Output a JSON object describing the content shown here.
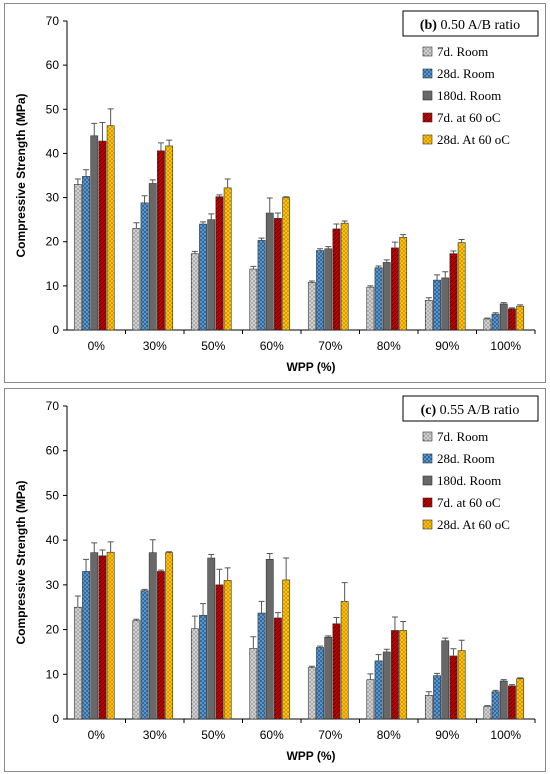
{
  "chart_data": [
    {
      "type": "bar",
      "title": "(b) 0.50 A/B ratio",
      "title_bold": "(b)",
      "title_rest": " 0.50 A/B ratio",
      "xlabel": "WPP (%)",
      "ylabel": "Compressive Strength (MPa)",
      "ylim": [
        0,
        70
      ],
      "yticks": [
        "0",
        "10",
        "20",
        "30",
        "40",
        "50",
        "60",
        "70"
      ],
      "legend_position": "right",
      "categories": [
        "0%",
        "30%",
        "50%",
        "60%",
        "70%",
        "80%",
        "90%",
        "100%"
      ],
      "series": [
        {
          "name": "7d. Room",
          "color": "#d0d0d0",
          "values": [
            33,
            23,
            17.3,
            13.8,
            10.8,
            9.7,
            6.7,
            2.5
          ],
          "errors": [
            1.2,
            1.3,
            0.5,
            0.6,
            0.3,
            0.3,
            0.6,
            0.2
          ]
        },
        {
          "name": "28d. Room",
          "color": "#5b9bd5",
          "values": [
            34.8,
            28.8,
            24,
            20.3,
            18,
            14.1,
            11.3,
            3.6
          ],
          "errors": [
            1.5,
            1.6,
            0.5,
            0.5,
            0.4,
            0.4,
            1.2,
            0.3
          ]
        },
        {
          "name": "180d. Room",
          "color": "#7f7f7f",
          "values": [
            44,
            33.2,
            25,
            26.5,
            18.4,
            15.3,
            11.8,
            5.9
          ],
          "errors": [
            2.8,
            0.8,
            1.3,
            3.4,
            0.5,
            0.6,
            1.4,
            0.3
          ]
        },
        {
          "name": "7d. at 60 oC",
          "color": "#c00000",
          "values": [
            42.8,
            40.6,
            30.2,
            25.3,
            22.9,
            18.6,
            17.3,
            4.8
          ],
          "errors": [
            4.2,
            1.8,
            0.4,
            1.2,
            1.1,
            1.3,
            0.6,
            0.2
          ]
        },
        {
          "name": "28d. At 60 oC",
          "color": "#ffc000",
          "values": [
            46.3,
            41.7,
            32.2,
            30,
            24.2,
            21,
            19.8,
            5.4
          ],
          "errors": [
            3.8,
            1.3,
            2,
            0.2,
            0.5,
            0.6,
            0.7,
            0.3
          ]
        }
      ]
    },
    {
      "type": "bar",
      "title": "(c) 0.55 A/B ratio",
      "title_bold": "(c)",
      "title_rest": " 0.55 A/B ratio",
      "xlabel": "WPP (%)",
      "ylabel": "Compressive Strength (MPa)",
      "ylim": [
        0,
        70
      ],
      "yticks": [
        "0",
        "10",
        "20",
        "30",
        "40",
        "50",
        "60",
        "70"
      ],
      "legend_position": "right",
      "categories": [
        "0%",
        "30%",
        "50%",
        "60%",
        "70%",
        "80%",
        "90%",
        "100%"
      ],
      "series": [
        {
          "name": "7d. Room",
          "color": "#d0d0d0",
          "values": [
            25,
            22,
            20.2,
            15.8,
            11.5,
            8.8,
            5.3,
            2.8
          ],
          "errors": [
            2.5,
            0.3,
            2.8,
            2.6,
            0.3,
            1.3,
            0.8,
            0.2
          ]
        },
        {
          "name": "28d. Room",
          "color": "#5b9bd5",
          "values": [
            33,
            28.7,
            23.2,
            23.7,
            16,
            13,
            9.7,
            6.1
          ],
          "errors": [
            2.7,
            0.3,
            2.6,
            2.6,
            0.3,
            1.4,
            0.5,
            0.3
          ]
        },
        {
          "name": "180d. Room",
          "color": "#7f7f7f",
          "values": [
            37.2,
            37.2,
            36,
            35.7,
            18.3,
            15,
            17.5,
            8.5
          ],
          "errors": [
            2.2,
            2.9,
            0.8,
            1.3,
            0.3,
            0.6,
            0.6,
            0.3
          ]
        },
        {
          "name": "7d. at 60 oC",
          "color": "#c00000",
          "values": [
            36.5,
            33,
            30,
            22.6,
            21.3,
            19.8,
            14.1,
            7.4
          ],
          "errors": [
            1.3,
            0.3,
            3.5,
            1.2,
            1.4,
            3,
            1.6,
            0.3
          ]
        },
        {
          "name": "28d. At 60 oC",
          "color": "#ffc000",
          "values": [
            37.3,
            37.2,
            31,
            31.1,
            26.3,
            19.8,
            15.3,
            9
          ],
          "errors": [
            2.3,
            0.2,
            2.8,
            4.9,
            4.2,
            2,
            2.3,
            0.2
          ]
        }
      ]
    }
  ]
}
